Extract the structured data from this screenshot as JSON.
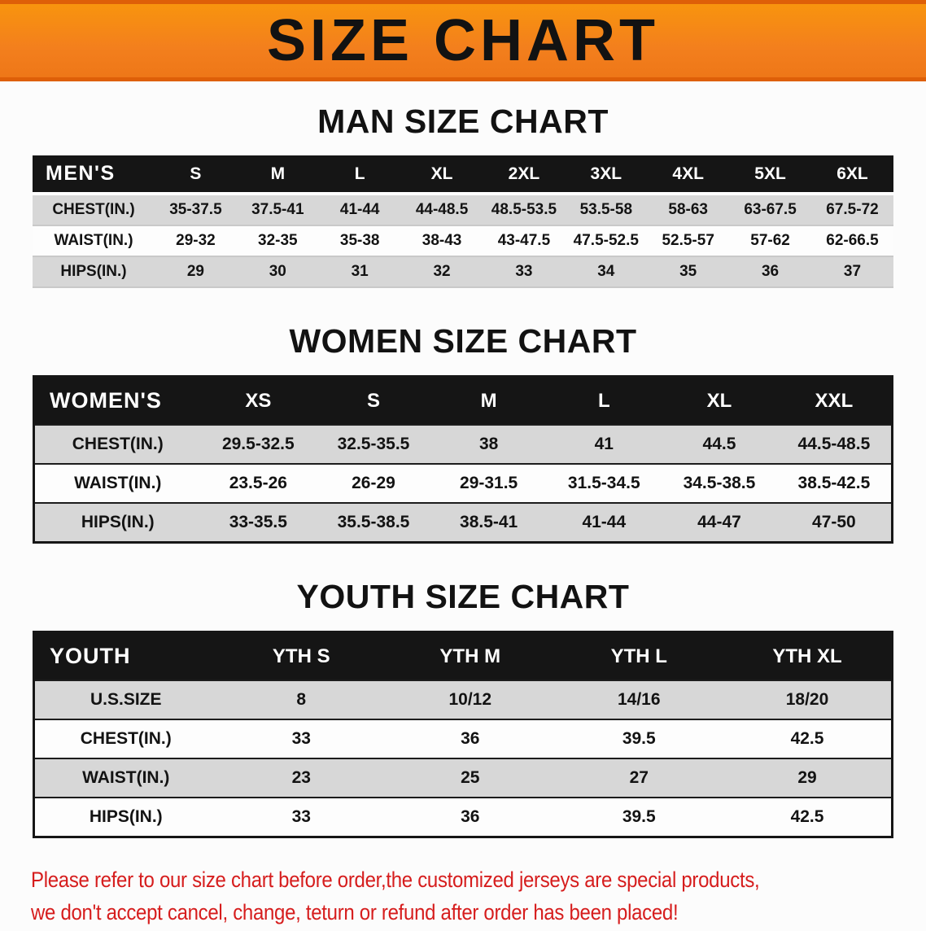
{
  "banner": {
    "title": "SIZE CHART",
    "bg_color": "#f5821f",
    "border_color": "#de5f08",
    "text_color": "#121212"
  },
  "sections": [
    {
      "heading": "MAN SIZE CHART",
      "table": {
        "header_label": "MEN'S",
        "columns": [
          "S",
          "M",
          "L",
          "XL",
          "2XL",
          "3XL",
          "4XL",
          "5XL",
          "6XL"
        ],
        "rows": [
          {
            "label": "CHEST(IN.)",
            "values": [
              "35-37.5",
              "37.5-41",
              "41-44",
              "44-48.5",
              "48.5-53.5",
              "53.5-58",
              "58-63",
              "63-67.5",
              "67.5-72"
            ]
          },
          {
            "label": "WAIST(IN.)",
            "values": [
              "29-32",
              "32-35",
              "35-38",
              "38-43",
              "43-47.5",
              "47.5-52.5",
              "52.5-57",
              "57-62",
              "62-66.5"
            ]
          },
          {
            "label": "HIPS(IN.)",
            "values": [
              "29",
              "30",
              "31",
              "32",
              "33",
              "34",
              "35",
              "36",
              "37"
            ]
          }
        ]
      }
    },
    {
      "heading": "WOMEN SIZE CHART",
      "table": {
        "header_label": "WOMEN'S",
        "columns": [
          "XS",
          "S",
          "M",
          "L",
          "XL",
          "XXL"
        ],
        "rows": [
          {
            "label": "CHEST(IN.)",
            "values": [
              "29.5-32.5",
              "32.5-35.5",
              "38",
              "41",
              "44.5",
              "44.5-48.5"
            ]
          },
          {
            "label": "WAIST(IN.)",
            "values": [
              "23.5-26",
              "26-29",
              "29-31.5",
              "31.5-34.5",
              "34.5-38.5",
              "38.5-42.5"
            ]
          },
          {
            "label": "HIPS(IN.)",
            "values": [
              "33-35.5",
              "35.5-38.5",
              "38.5-41",
              "41-44",
              "44-47",
              "47-50"
            ]
          }
        ]
      }
    },
    {
      "heading": "YOUTH SIZE CHART",
      "table": {
        "header_label": "YOUTH",
        "columns": [
          "YTH S",
          "YTH M",
          "YTH L",
          "YTH XL"
        ],
        "rows": [
          {
            "label": "U.S.SIZE",
            "values": [
              "8",
              "10/12",
              "14/16",
              "18/20"
            ]
          },
          {
            "label": "CHEST(IN.)",
            "values": [
              "33",
              "36",
              "39.5",
              "42.5"
            ]
          },
          {
            "label": "WAIST(IN.)",
            "values": [
              "23",
              "25",
              "27",
              "29"
            ]
          },
          {
            "label": "HIPS(IN.)",
            "values": [
              "33",
              "36",
              "39.5",
              "42.5"
            ]
          }
        ]
      }
    }
  ],
  "footer": {
    "line1": "Please refer to our size chart before order,the customized jerseys are special products,",
    "line2": "we don't accept cancel, change, teturn or refund after order has been placed!",
    "text_color": "#d61d1d"
  },
  "colors": {
    "stripe_gray": "#d7d7d7",
    "header_black": "#151515",
    "banner_orange": "#f5821f"
  }
}
